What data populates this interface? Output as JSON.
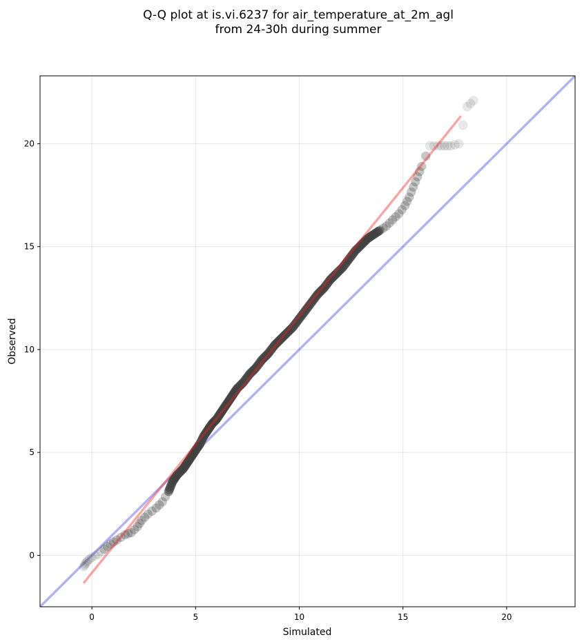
{
  "chart_data": {
    "type": "scatter",
    "title_line1": "Q-Q plot at is.vi.6237 for air_temperature_at_2m_agl",
    "title_line2": "from 24-30h during summer",
    "xlabel": "Simulated",
    "ylabel": "Observed",
    "xlim": [
      -2.5,
      23.3
    ],
    "ylim": [
      -2.5,
      23.3
    ],
    "xticks": [
      0,
      5,
      10,
      15,
      20
    ],
    "yticks": [
      0,
      5,
      10,
      15,
      20
    ],
    "xtick_labels": [
      "0",
      "5",
      "10",
      "15",
      "20"
    ],
    "ytick_labels": [
      "0",
      "5",
      "10",
      "15",
      "20"
    ],
    "grid": true,
    "identity_line": {
      "color": "#0000dd",
      "opacity": 0.3,
      "from": [
        -2.5,
        -2.5
      ],
      "to": [
        23.3,
        23.3
      ]
    },
    "fit_line": {
      "color": "#ee2222",
      "opacity": 0.4,
      "from": [
        -0.4,
        -1.35
      ],
      "to": [
        17.8,
        21.35
      ]
    },
    "point_color": "#444444",
    "quantile_points": [
      [
        -0.4,
        -0.55
      ],
      [
        -0.3,
        -0.4
      ],
      [
        -0.2,
        -0.25
      ],
      [
        0.0,
        -0.1
      ],
      [
        0.3,
        0.05
      ],
      [
        0.6,
        0.3
      ],
      [
        0.9,
        0.55
      ],
      [
        1.2,
        0.75
      ],
      [
        1.6,
        1.0
      ],
      [
        1.9,
        1.1
      ],
      [
        2.2,
        1.4
      ],
      [
        2.4,
        1.7
      ],
      [
        2.7,
        2.0
      ],
      [
        3.1,
        2.3
      ],
      [
        3.4,
        2.6
      ],
      [
        3.7,
        3.1
      ],
      [
        3.9,
        3.6
      ],
      [
        4.1,
        3.9
      ],
      [
        4.4,
        4.2
      ],
      [
        4.6,
        4.5
      ],
      [
        4.8,
        4.8
      ],
      [
        5.0,
        5.1
      ],
      [
        5.2,
        5.4
      ],
      [
        5.4,
        5.8
      ],
      [
        5.6,
        6.1
      ],
      [
        5.8,
        6.4
      ],
      [
        6.0,
        6.6
      ],
      [
        6.2,
        6.9
      ],
      [
        6.4,
        7.2
      ],
      [
        6.6,
        7.5
      ],
      [
        6.8,
        7.8
      ],
      [
        7.0,
        8.1
      ],
      [
        7.3,
        8.4
      ],
      [
        7.6,
        8.8
      ],
      [
        7.9,
        9.1
      ],
      [
        8.2,
        9.5
      ],
      [
        8.5,
        9.8
      ],
      [
        8.8,
        10.2
      ],
      [
        9.1,
        10.5
      ],
      [
        9.4,
        10.8
      ],
      [
        9.7,
        11.1
      ],
      [
        10.0,
        11.5
      ],
      [
        10.3,
        11.9
      ],
      [
        10.6,
        12.3
      ],
      [
        10.9,
        12.7
      ],
      [
        11.2,
        13.0
      ],
      [
        11.5,
        13.4
      ],
      [
        11.8,
        13.7
      ],
      [
        12.1,
        14.0
      ],
      [
        12.4,
        14.4
      ],
      [
        12.7,
        14.8
      ],
      [
        13.0,
        15.1
      ],
      [
        13.3,
        15.4
      ],
      [
        13.6,
        15.6
      ],
      [
        13.9,
        15.8
      ],
      [
        14.2,
        16.0
      ],
      [
        14.5,
        16.3
      ],
      [
        14.8,
        16.6
      ],
      [
        15.1,
        17.0
      ],
      [
        15.3,
        17.4
      ],
      [
        15.5,
        17.9
      ],
      [
        15.7,
        18.4
      ],
      [
        15.9,
        18.9
      ],
      [
        16.3,
        19.9
      ],
      [
        16.7,
        19.9
      ],
      [
        17.0,
        19.9
      ],
      [
        17.3,
        19.9
      ],
      [
        17.7,
        20.0
      ],
      [
        18.1,
        21.8
      ],
      [
        18.4,
        22.1
      ]
    ]
  }
}
